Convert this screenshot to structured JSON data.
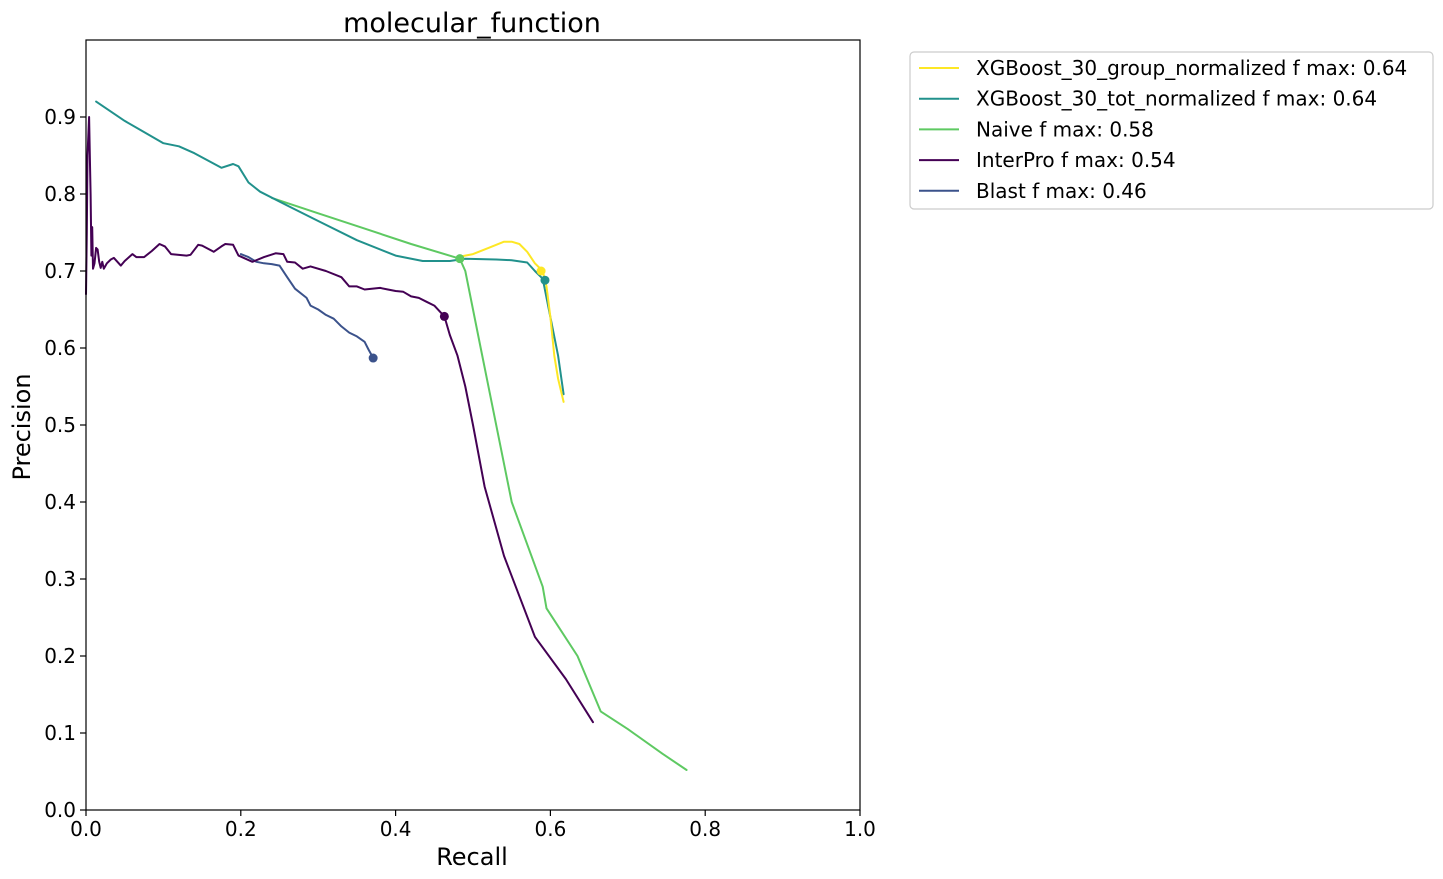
{
  "chart_data": {
    "type": "line",
    "title": "molecular_function",
    "xlabel": "Recall",
    "ylabel": "Precision",
    "xlim": [
      0.0,
      1.0
    ],
    "ylim": [
      0.0,
      1.0
    ],
    "xticks": [
      "0.0",
      "0.2",
      "0.4",
      "0.6",
      "0.8",
      "1.0"
    ],
    "yticks": [
      "0.0",
      "0.1",
      "0.2",
      "0.3",
      "0.4",
      "0.5",
      "0.6",
      "0.7",
      "0.8",
      "0.9"
    ],
    "grid": false,
    "legend_position": "outside-top-right",
    "series": [
      {
        "name": "XGBoost_30_group_normalized f max: 0.64",
        "color": "#fde725",
        "fmax_point": [
          0.588,
          0.7
        ],
        "points": [
          [
            0.48,
            0.718
          ],
          [
            0.5,
            0.722
          ],
          [
            0.52,
            0.73
          ],
          [
            0.54,
            0.738
          ],
          [
            0.55,
            0.738
          ],
          [
            0.56,
            0.735
          ],
          [
            0.57,
            0.725
          ],
          [
            0.58,
            0.71
          ],
          [
            0.59,
            0.7
          ],
          [
            0.595,
            0.68
          ],
          [
            0.6,
            0.64
          ],
          [
            0.605,
            0.59
          ],
          [
            0.61,
            0.56
          ],
          [
            0.617,
            0.53
          ]
        ]
      },
      {
        "name": "XGBoost_30_tot_normalized f max: 0.64",
        "color": "#21918c",
        "fmax_point": [
          0.593,
          0.688
        ],
        "points": [
          [
            0.013,
            0.92
          ],
          [
            0.05,
            0.895
          ],
          [
            0.1,
            0.866
          ],
          [
            0.12,
            0.862
          ],
          [
            0.14,
            0.853
          ],
          [
            0.175,
            0.834
          ],
          [
            0.19,
            0.839
          ],
          [
            0.197,
            0.836
          ],
          [
            0.21,
            0.815
          ],
          [
            0.225,
            0.803
          ],
          [
            0.26,
            0.785
          ],
          [
            0.3,
            0.765
          ],
          [
            0.35,
            0.74
          ],
          [
            0.4,
            0.72
          ],
          [
            0.435,
            0.713
          ],
          [
            0.47,
            0.713
          ],
          [
            0.49,
            0.716
          ],
          [
            0.53,
            0.715
          ],
          [
            0.55,
            0.714
          ],
          [
            0.57,
            0.711
          ],
          [
            0.58,
            0.7
          ],
          [
            0.59,
            0.69
          ],
          [
            0.6,
            0.64
          ],
          [
            0.61,
            0.59
          ],
          [
            0.617,
            0.54
          ]
        ]
      },
      {
        "name": "Naive f max: 0.58",
        "color": "#5ec962",
        "fmax_point": [
          0.483,
          0.716
        ],
        "points": [
          [
            0.24,
            0.795
          ],
          [
            0.3,
            0.775
          ],
          [
            0.36,
            0.755
          ],
          [
            0.42,
            0.735
          ],
          [
            0.483,
            0.716
          ],
          [
            0.49,
            0.7
          ],
          [
            0.51,
            0.6
          ],
          [
            0.55,
            0.4
          ],
          [
            0.59,
            0.29
          ],
          [
            0.595,
            0.262
          ],
          [
            0.635,
            0.2
          ],
          [
            0.665,
            0.128
          ],
          [
            0.7,
            0.105
          ],
          [
            0.745,
            0.073
          ],
          [
            0.776,
            0.052
          ]
        ]
      },
      {
        "name": "InterPro f max: 0.54",
        "color": "#440154",
        "fmax_point": [
          0.463,
          0.641
        ],
        "points": [
          [
            0.0,
            0.67
          ],
          [
            0.001,
            0.75
          ],
          [
            0.002,
            0.85
          ],
          [
            0.004,
            0.9
          ],
          [
            0.005,
            0.845
          ],
          [
            0.006,
            0.8
          ],
          [
            0.007,
            0.72
          ],
          [
            0.008,
            0.757
          ],
          [
            0.009,
            0.703
          ],
          [
            0.011,
            0.71
          ],
          [
            0.013,
            0.73
          ],
          [
            0.015,
            0.728
          ],
          [
            0.017,
            0.712
          ],
          [
            0.019,
            0.704
          ],
          [
            0.021,
            0.712
          ],
          [
            0.023,
            0.703
          ],
          [
            0.027,
            0.71
          ],
          [
            0.032,
            0.715
          ],
          [
            0.036,
            0.717
          ],
          [
            0.045,
            0.707
          ],
          [
            0.05,
            0.713
          ],
          [
            0.06,
            0.722
          ],
          [
            0.065,
            0.718
          ],
          [
            0.075,
            0.718
          ],
          [
            0.085,
            0.726
          ],
          [
            0.095,
            0.735
          ],
          [
            0.102,
            0.732
          ],
          [
            0.11,
            0.722
          ],
          [
            0.13,
            0.72
          ],
          [
            0.135,
            0.721
          ],
          [
            0.145,
            0.734
          ],
          [
            0.15,
            0.733
          ],
          [
            0.165,
            0.725
          ],
          [
            0.175,
            0.732
          ],
          [
            0.18,
            0.735
          ],
          [
            0.19,
            0.734
          ],
          [
            0.197,
            0.72
          ],
          [
            0.215,
            0.712
          ],
          [
            0.23,
            0.718
          ],
          [
            0.245,
            0.723
          ],
          [
            0.255,
            0.722
          ],
          [
            0.26,
            0.712
          ],
          [
            0.27,
            0.711
          ],
          [
            0.28,
            0.703
          ],
          [
            0.29,
            0.706
          ],
          [
            0.31,
            0.7
          ],
          [
            0.33,
            0.692
          ],
          [
            0.34,
            0.68
          ],
          [
            0.35,
            0.68
          ],
          [
            0.36,
            0.676
          ],
          [
            0.38,
            0.678
          ],
          [
            0.39,
            0.676
          ],
          [
            0.4,
            0.674
          ],
          [
            0.41,
            0.673
          ],
          [
            0.42,
            0.667
          ],
          [
            0.43,
            0.665
          ],
          [
            0.44,
            0.66
          ],
          [
            0.45,
            0.655
          ],
          [
            0.463,
            0.641
          ],
          [
            0.47,
            0.617
          ],
          [
            0.48,
            0.59
          ],
          [
            0.49,
            0.55
          ],
          [
            0.5,
            0.5
          ],
          [
            0.515,
            0.42
          ],
          [
            0.54,
            0.33
          ],
          [
            0.58,
            0.225
          ],
          [
            0.62,
            0.17
          ],
          [
            0.655,
            0.114
          ]
        ]
      },
      {
        "name": "Blast f max: 0.46",
        "color": "#3b528b",
        "fmax_point": [
          0.371,
          0.587
        ],
        "points": [
          [
            0.2,
            0.722
          ],
          [
            0.21,
            0.718
          ],
          [
            0.22,
            0.712
          ],
          [
            0.23,
            0.71
          ],
          [
            0.24,
            0.709
          ],
          [
            0.25,
            0.707
          ],
          [
            0.26,
            0.692
          ],
          [
            0.27,
            0.677
          ],
          [
            0.285,
            0.665
          ],
          [
            0.29,
            0.655
          ],
          [
            0.3,
            0.65
          ],
          [
            0.31,
            0.643
          ],
          [
            0.32,
            0.638
          ],
          [
            0.33,
            0.628
          ],
          [
            0.34,
            0.62
          ],
          [
            0.35,
            0.615
          ],
          [
            0.36,
            0.608
          ],
          [
            0.365,
            0.598
          ],
          [
            0.371,
            0.587
          ]
        ]
      }
    ]
  }
}
